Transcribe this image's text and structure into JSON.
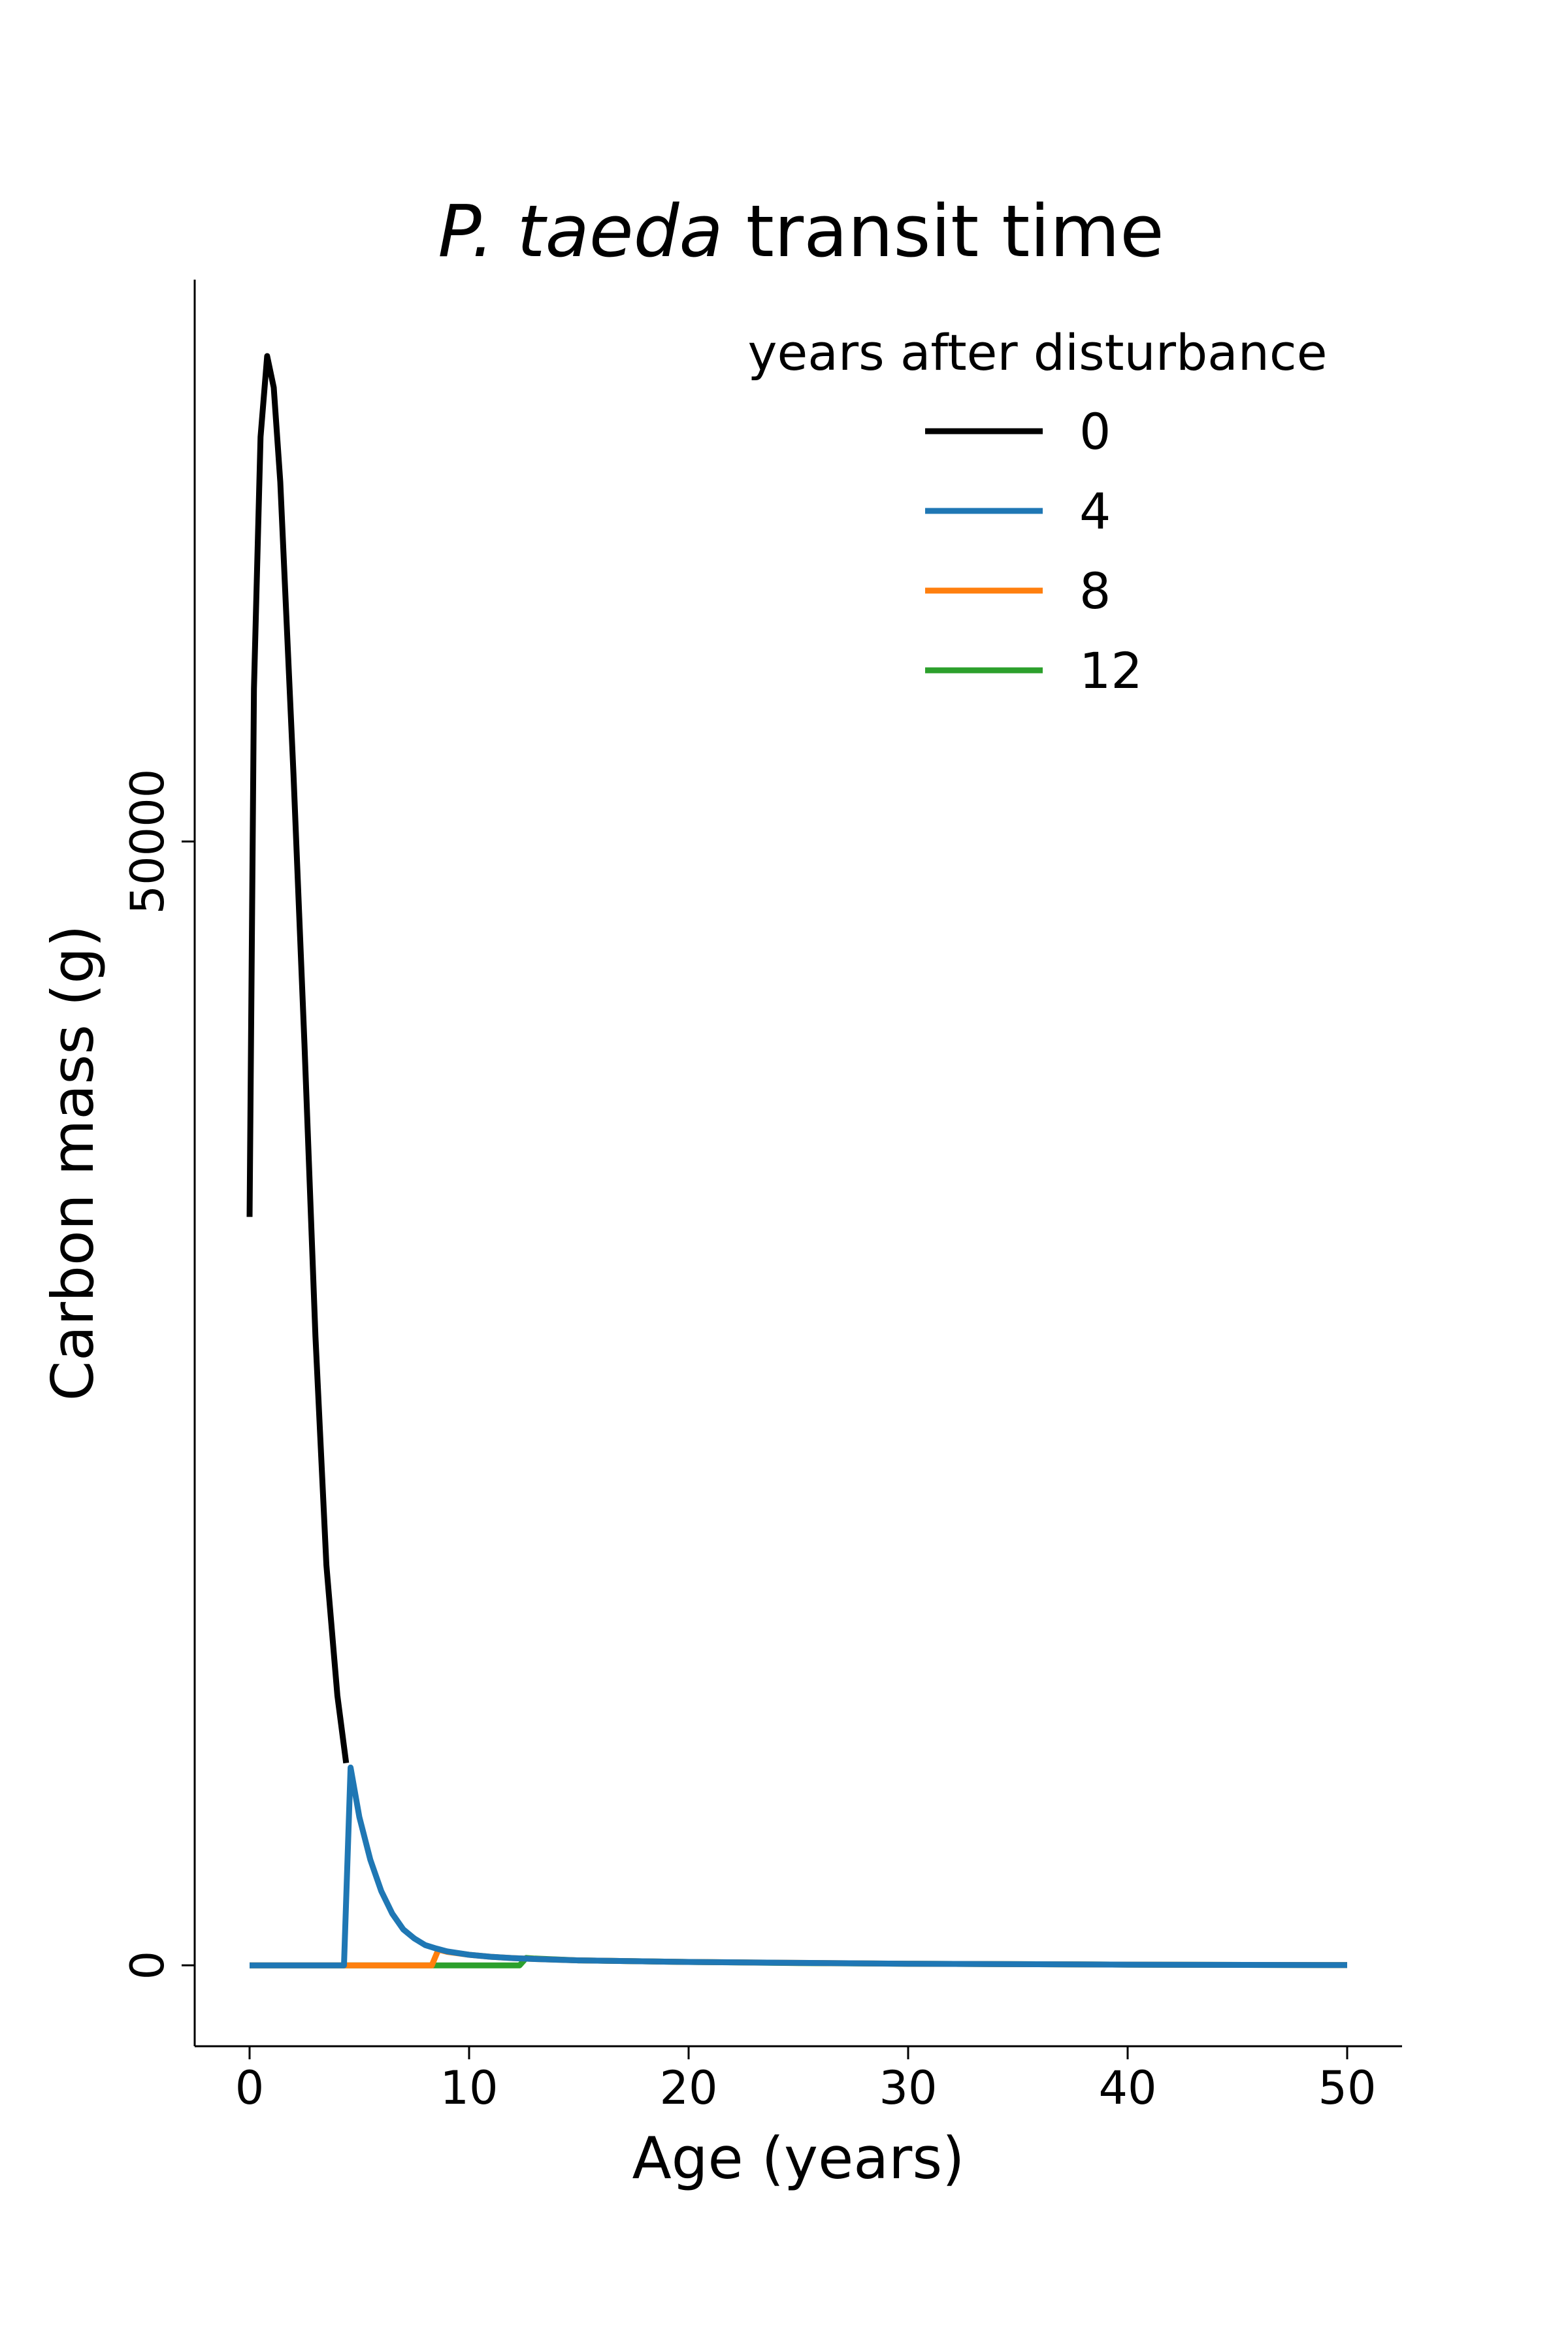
{
  "chart_data": {
    "type": "line",
    "title_italic": "P. taeda",
    "title_rest": "transit time",
    "xlabel": "Age (years)",
    "ylabel": "Carbon mass (g)",
    "xlim": [
      -2.5,
      52.5
    ],
    "ylim": [
      -3600,
      75000
    ],
    "xticks": [
      0,
      10,
      20,
      30,
      40,
      50
    ],
    "xtick_labels": [
      "0",
      "10",
      "20",
      "30",
      "40",
      "50"
    ],
    "yticks": [
      0,
      50000
    ],
    "ytick_labels": [
      "0",
      "50000"
    ],
    "grid": false,
    "legend": {
      "title": "years after disturbance",
      "placement": "top-right"
    },
    "series": [
      {
        "name": "0",
        "color": "#000000",
        "x": [
          0,
          0.2,
          0.5,
          0.8,
          1.1,
          1.4,
          2,
          2.5,
          3,
          3.5,
          4,
          4.4
        ],
        "y": [
          33300,
          56800,
          68000,
          71600,
          70200,
          66000,
          53000,
          41000,
          28000,
          17800,
          12000,
          9000
        ]
      },
      {
        "name": "4",
        "color": "#1f77b4",
        "x": [
          0,
          4.3,
          4.6,
          5,
          5.5,
          6,
          6.5,
          7,
          7.5,
          8,
          8.5,
          9,
          10,
          11,
          12,
          13,
          15,
          20,
          30,
          40,
          50
        ],
        "y": [
          0,
          0,
          8800,
          6600,
          4700,
          3300,
          2300,
          1600,
          1200,
          900,
          750,
          620,
          470,
          380,
          320,
          280,
          220,
          150,
          70,
          30,
          10
        ]
      },
      {
        "name": "8",
        "color": "#ff7f0e",
        "x": [
          0,
          8.3,
          8.6,
          9,
          10,
          11,
          12,
          13,
          15,
          20,
          30,
          40,
          50
        ],
        "y": [
          0,
          0,
          700,
          600,
          470,
          380,
          320,
          280,
          220,
          150,
          70,
          30,
          10
        ]
      },
      {
        "name": "12",
        "color": "#2ca02c",
        "x": [
          0,
          12.3,
          12.6,
          13,
          15,
          20,
          25,
          30,
          40,
          50
        ],
        "y": [
          0,
          0,
          330,
          300,
          220,
          150,
          100,
          70,
          30,
          10
        ]
      }
    ]
  }
}
